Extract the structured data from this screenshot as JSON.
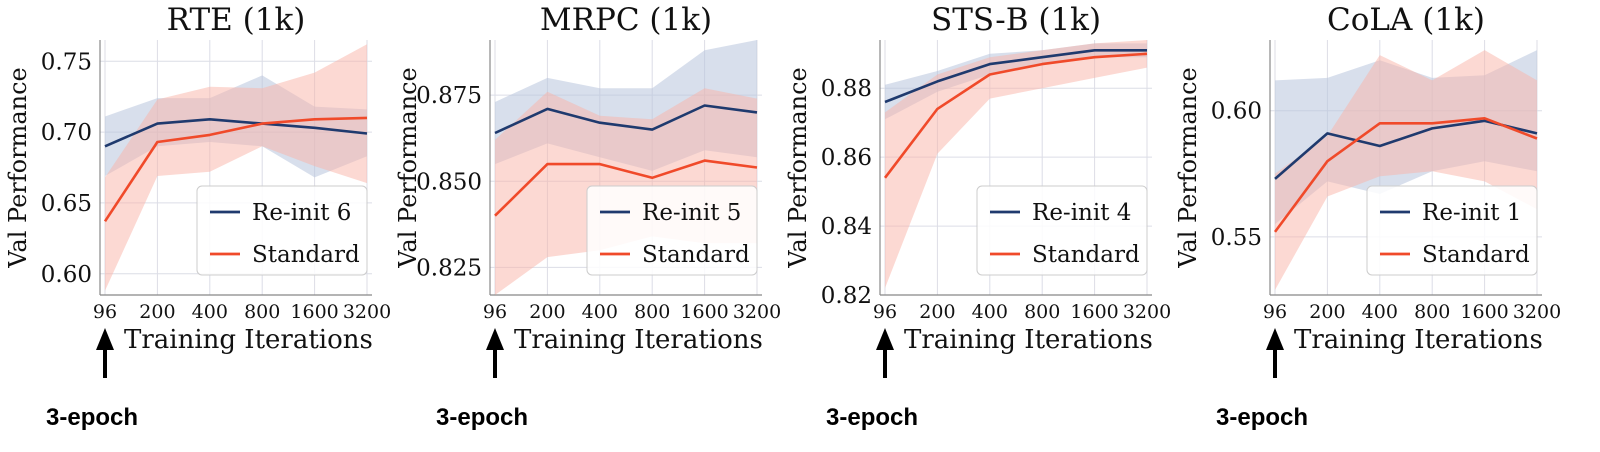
{
  "colors": {
    "reinit": "#1f3a6e",
    "standard": "#f04a2a",
    "reinit_band": "#b8c4dc",
    "standard_band": "#f9b4a8",
    "grid": "#dcdde6",
    "axis": "#888888",
    "text": "#111111"
  },
  "x_ticks": [
    "96",
    "200",
    "400",
    "800",
    "1600",
    "3200"
  ],
  "xlabel": "Training Iterations",
  "ylabel": "Val Performance",
  "arrow_label": "3-epoch",
  "chart_data": [
    {
      "type": "line",
      "title": "RTE (1k)",
      "categories": [
        "96",
        "200",
        "400",
        "800",
        "1600",
        "3200"
      ],
      "xlabel": "Training Iterations",
      "ylabel": "Val Performance",
      "ylim": [
        0.585,
        0.765
      ],
      "yticks": [
        "0.60",
        "0.65",
        "0.70",
        "0.75"
      ],
      "legend_position": "lower-right",
      "series": [
        {
          "name": "Re-init 6",
          "values": [
            0.69,
            0.706,
            0.709,
            0.706,
            0.703,
            0.699
          ],
          "lower": [
            0.669,
            0.69,
            0.693,
            0.69,
            0.668,
            0.683
          ],
          "upper": [
            0.711,
            0.724,
            0.724,
            0.74,
            0.718,
            0.716
          ]
        },
        {
          "name": "Standard",
          "values": [
            0.637,
            0.693,
            0.698,
            0.706,
            0.709,
            0.71
          ],
          "lower": [
            0.588,
            0.669,
            0.672,
            0.69,
            0.676,
            0.664
          ],
          "upper": [
            0.668,
            0.723,
            0.732,
            0.731,
            0.742,
            0.762
          ]
        }
      ]
    },
    {
      "type": "line",
      "title": "MRPC (1k)",
      "categories": [
        "96",
        "200",
        "400",
        "800",
        "1600",
        "3200"
      ],
      "xlabel": "Training Iterations",
      "ylabel": "Val Performance",
      "ylim": [
        0.817,
        0.891
      ],
      "yticks": [
        "0.825",
        "0.850",
        "0.875"
      ],
      "legend_position": "lower-right",
      "series": [
        {
          "name": "Re-init 5",
          "values": [
            0.864,
            0.871,
            0.867,
            0.865,
            0.872,
            0.87
          ],
          "lower": [
            0.855,
            0.861,
            0.857,
            0.853,
            0.859,
            0.857
          ],
          "upper": [
            0.873,
            0.88,
            0.877,
            0.877,
            0.888,
            0.891
          ]
        },
        {
          "name": "Standard",
          "values": [
            0.84,
            0.855,
            0.855,
            0.851,
            0.856,
            0.854
          ],
          "lower": [
            0.817,
            0.828,
            0.83,
            0.834,
            0.832,
            0.832
          ],
          "upper": [
            0.862,
            0.876,
            0.869,
            0.868,
            0.877,
            0.874
          ]
        }
      ]
    },
    {
      "type": "line",
      "title": "STS-B (1k)",
      "categories": [
        "96",
        "200",
        "400",
        "800",
        "1600",
        "3200"
      ],
      "xlabel": "Training Iterations",
      "ylabel": "Val Performance",
      "ylim": [
        0.82,
        0.894
      ],
      "yticks": [
        "0.82",
        "0.84",
        "0.86",
        "0.88"
      ],
      "legend_position": "lower-right",
      "series": [
        {
          "name": "Re-init 4",
          "values": [
            0.876,
            0.882,
            0.887,
            0.889,
            0.891,
            0.891
          ],
          "lower": [
            0.871,
            0.879,
            0.884,
            0.887,
            0.889,
            0.889
          ],
          "upper": [
            0.881,
            0.885,
            0.89,
            0.891,
            0.893,
            0.893
          ]
        },
        {
          "name": "Standard",
          "values": [
            0.854,
            0.874,
            0.884,
            0.887,
            0.889,
            0.89
          ],
          "lower": [
            0.822,
            0.861,
            0.877,
            0.88,
            0.883,
            0.886
          ],
          "upper": [
            0.873,
            0.884,
            0.889,
            0.891,
            0.893,
            0.894
          ]
        }
      ]
    },
    {
      "type": "line",
      "title": "CoLA (1k)",
      "categories": [
        "96",
        "200",
        "400",
        "800",
        "1600",
        "3200"
      ],
      "xlabel": "Training Iterations",
      "ylabel": "Val Performance",
      "ylim": [
        0.527,
        0.628
      ],
      "yticks": [
        "0.55",
        "0.60"
      ],
      "legend_position": "lower-right",
      "series": [
        {
          "name": "Re-init 1",
          "values": [
            0.573,
            0.591,
            0.586,
            0.593,
            0.596,
            0.591
          ],
          "lower": [
            0.555,
            0.572,
            0.567,
            0.576,
            0.58,
            0.576
          ],
          "upper": [
            0.612,
            0.613,
            0.62,
            0.613,
            0.614,
            0.624
          ]
        },
        {
          "name": "Standard",
          "values": [
            0.552,
            0.58,
            0.595,
            0.595,
            0.597,
            0.589
          ],
          "lower": [
            0.529,
            0.566,
            0.574,
            0.576,
            0.572,
            0.561
          ],
          "upper": [
            0.575,
            0.59,
            0.622,
            0.612,
            0.624,
            0.612
          ]
        }
      ]
    }
  ]
}
